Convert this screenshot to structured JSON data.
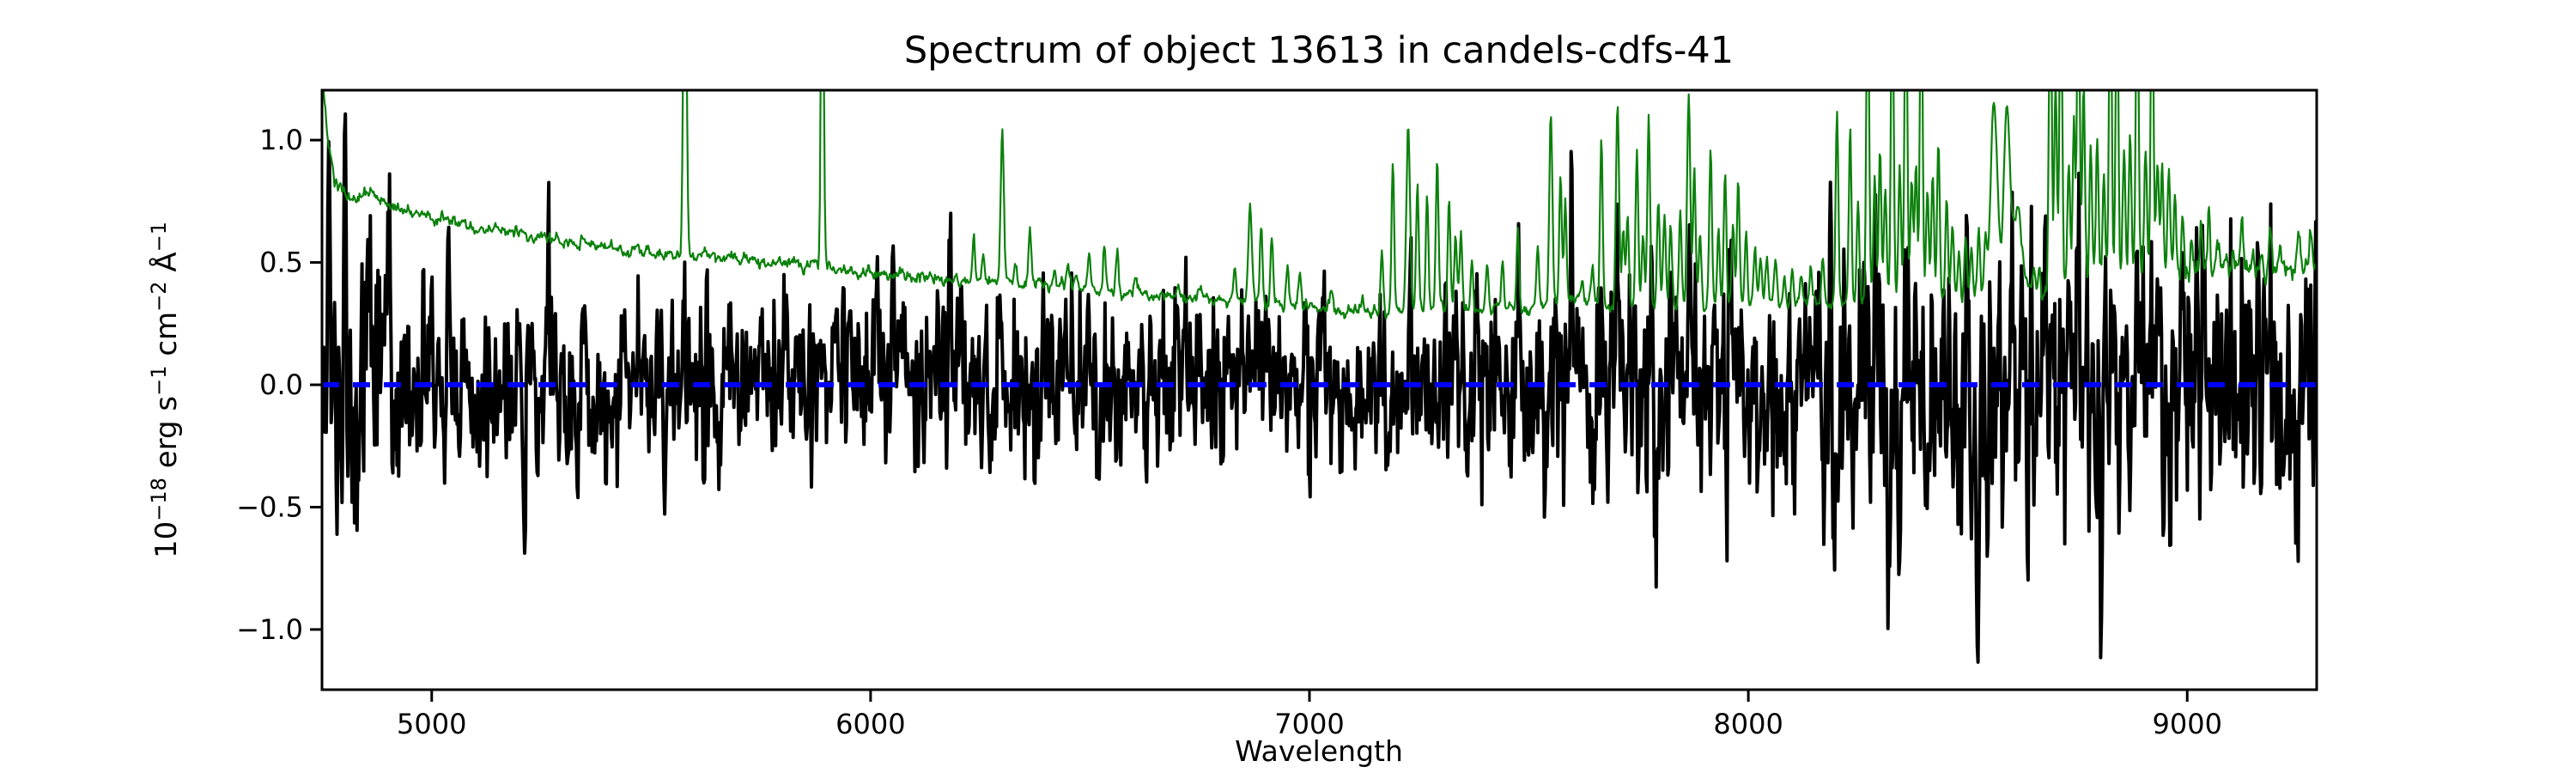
{
  "figure": {
    "title": "Spectrum of object 13613 in candels-cdfs-41",
    "background": "#ffffff"
  },
  "chart_data": {
    "type": "line",
    "title": "Spectrum of object 13613 in candels-cdfs-41",
    "xlabel": "Wavelength",
    "ylabel": "10⁻¹⁸ erg s⁻¹ cm⁻² Å⁻¹",
    "ylabel_segments": [
      {
        "t": "10"
      },
      {
        "t": "−18",
        "sup": true
      },
      {
        "t": " erg s"
      },
      {
        "t": "−1",
        "sup": true
      },
      {
        "t": " cm"
      },
      {
        "t": "−2",
        "sup": true
      },
      {
        "t": " Å"
      },
      {
        "t": "−1",
        "sup": true
      }
    ],
    "xlim": [
      4750,
      9295
    ],
    "ylim": [
      -1.246,
      1.204
    ],
    "x_ticks": [
      5000,
      6000,
      7000,
      8000,
      9000
    ],
    "x_tick_labels": [
      "5000",
      "6000",
      "7000",
      "8000",
      "9000"
    ],
    "y_ticks": [
      1.0,
      0.5,
      0.0,
      -0.5,
      -1.0
    ],
    "y_tick_labels": [
      "1.0",
      "0.5",
      "0.0",
      "−0.5",
      "−1.0"
    ],
    "grid": false,
    "legend": null,
    "colors": {
      "flux": "#000000",
      "noise": "#0c810c",
      "zero_line": "#0000ff",
      "axes": "#000000"
    },
    "series": [
      {
        "name": "flux",
        "description": "Extracted object flux spectrum: correlated noise around zero, noisier at blue and red ends",
        "color": "#000000",
        "style": "solid",
        "width": 4,
        "seed": 1361301,
        "ar": 0.45,
        "step": 1.9,
        "spike_width": 2.6,
        "sigma_control": [
          [
            4750,
            0.3
          ],
          [
            4800,
            0.33
          ],
          [
            4870,
            0.26
          ],
          [
            4950,
            0.22
          ],
          [
            5100,
            0.2
          ],
          [
            5400,
            0.195
          ],
          [
            5700,
            0.185
          ],
          [
            6000,
            0.18
          ],
          [
            6400,
            0.17
          ],
          [
            6800,
            0.175
          ],
          [
            7100,
            0.185
          ],
          [
            7400,
            0.2
          ],
          [
            7700,
            0.21
          ],
          [
            8000,
            0.23
          ],
          [
            8150,
            0.28
          ],
          [
            8400,
            0.31
          ],
          [
            8700,
            0.3
          ],
          [
            9000,
            0.27
          ],
          [
            9295,
            0.3
          ]
        ],
        "spikes": [
          [
            4765,
            0.85
          ],
          [
            4803,
            1.0
          ],
          [
            4821,
            -0.62
          ],
          [
            4853,
            0.55
          ],
          [
            4903,
            0.8
          ],
          [
            4960,
            -0.45
          ],
          [
            5040,
            0.45
          ],
          [
            5211,
            -0.52
          ],
          [
            5265,
            0.52
          ],
          [
            5330,
            -0.4
          ],
          [
            5575,
            0.48
          ],
          [
            5700,
            -0.42
          ],
          [
            5810,
            0.4
          ],
          [
            6050,
            0.42
          ],
          [
            6180,
            0.45
          ],
          [
            6290,
            0.48
          ],
          [
            6444,
            0.42
          ],
          [
            6560,
            -0.4
          ],
          [
            6700,
            0.38
          ],
          [
            6860,
            0.42
          ],
          [
            7000,
            -0.38
          ],
          [
            7229,
            0.45
          ],
          [
            7310,
            0.4
          ],
          [
            7479,
            0.48
          ],
          [
            7597,
            0.62
          ],
          [
            7702,
            0.46
          ],
          [
            7790,
            -0.42
          ],
          [
            7864,
            0.56
          ],
          [
            7950,
            -0.4
          ],
          [
            8080,
            -0.45
          ],
          [
            8196,
            -0.96
          ],
          [
            8289,
            0.56
          ],
          [
            8317,
            -0.97
          ],
          [
            8404,
            -0.68
          ],
          [
            8470,
            0.45
          ],
          [
            8523,
            -0.66
          ],
          [
            8546,
            -0.5
          ],
          [
            8600,
            0.5
          ],
          [
            8638,
            -0.65
          ],
          [
            8690,
            0.45
          ],
          [
            8750,
            0.5
          ],
          [
            8776,
            -0.45
          ],
          [
            8804,
            -0.73
          ],
          [
            8884,
            0.64
          ],
          [
            8960,
            -0.45
          ],
          [
            9040,
            0.42
          ],
          [
            9100,
            0.46
          ],
          [
            9170,
            -0.48
          ],
          [
            9230,
            0.4
          ],
          [
            9275,
            0.45
          ]
        ]
      },
      {
        "name": "noise",
        "description": "Noise / sky spectrum: declining continuum with telluric sky emission line forest, clipped at plot top",
        "color": "#0c810c",
        "style": "solid",
        "width": 2.2,
        "seed": 414141,
        "step": 1.9,
        "wiggle_sigma": 0.011,
        "default_line_width": 3.0,
        "continuum_control": [
          [
            4750,
            1.3
          ],
          [
            4762,
            1.02
          ],
          [
            4778,
            0.84
          ],
          [
            4800,
            0.78
          ],
          [
            4830,
            0.76
          ],
          [
            4860,
            0.79
          ],
          [
            4900,
            0.73
          ],
          [
            5020,
            0.68
          ],
          [
            5150,
            0.63
          ],
          [
            5250,
            0.6
          ],
          [
            5400,
            0.565
          ],
          [
            5550,
            0.535
          ],
          [
            5700,
            0.51
          ],
          [
            5850,
            0.495
          ],
          [
            6000,
            0.455
          ],
          [
            6150,
            0.435
          ],
          [
            6300,
            0.42
          ],
          [
            6450,
            0.405
          ],
          [
            6600,
            0.375
          ],
          [
            6750,
            0.35
          ],
          [
            6900,
            0.325
          ],
          [
            7050,
            0.31
          ],
          [
            7200,
            0.3
          ],
          [
            7350,
            0.305
          ],
          [
            7500,
            0.31
          ],
          [
            7594,
            0.345
          ],
          [
            7621,
            0.34
          ],
          [
            7700,
            0.32
          ],
          [
            7850,
            0.325
          ],
          [
            8000,
            0.33
          ],
          [
            8150,
            0.33
          ],
          [
            8300,
            0.34
          ],
          [
            8450,
            0.35
          ],
          [
            8600,
            0.36
          ],
          [
            8700,
            0.4
          ],
          [
            8800,
            0.42
          ],
          [
            8900,
            0.44
          ],
          [
            9000,
            0.45
          ],
          [
            9100,
            0.46
          ],
          [
            9200,
            0.47
          ],
          [
            9295,
            0.5
          ]
        ],
        "sky_lines": [
          [
            5577,
            2.2,
            3.5
          ],
          [
            5890,
            2.2,
            3.0
          ],
          [
            6235,
            0.6
          ],
          [
            6257,
            0.55
          ],
          [
            6300,
            1.06,
            3.5
          ],
          [
            6330,
            0.5
          ],
          [
            6363,
            0.64
          ],
          [
            6420,
            0.46
          ],
          [
            6450,
            0.5
          ],
          [
            6498,
            0.52
          ],
          [
            6533,
            0.57
          ],
          [
            6562,
            0.55
          ],
          [
            6604,
            0.44
          ],
          [
            6700,
            0.4
          ],
          [
            6750,
            0.39
          ],
          [
            6830,
            0.46
          ],
          [
            6865,
            0.73,
            4.0
          ],
          [
            6890,
            0.66
          ],
          [
            6914,
            0.61
          ],
          [
            6950,
            0.49
          ],
          [
            6978,
            0.47
          ],
          [
            7050,
            0.38
          ],
          [
            7120,
            0.36
          ],
          [
            7165,
            0.55
          ],
          [
            7190,
            0.93
          ],
          [
            7225,
            1.06,
            4.0
          ],
          [
            7246,
            0.81
          ],
          [
            7268,
            0.79
          ],
          [
            7291,
            0.93
          ],
          [
            7318,
            0.77
          ],
          [
            7333,
            0.62
          ],
          [
            7345,
            0.61
          ],
          [
            7370,
            0.52
          ],
          [
            7405,
            0.51
          ],
          [
            7440,
            0.49
          ],
          [
            7475,
            0.63
          ],
          [
            7520,
            0.56
          ],
          [
            7550,
            1.12,
            3.5
          ],
          [
            7572,
            0.86
          ],
          [
            7583,
            0.73
          ],
          [
            7622,
            0.44
          ],
          [
            7645,
            0.48
          ],
          [
            7665,
            1.01
          ],
          [
            7702,
            1.14,
            3.5
          ],
          [
            7715,
            0.65
          ],
          [
            7725,
            0.69
          ],
          [
            7746,
            0.98
          ],
          [
            7760,
            0.62
          ],
          [
            7773,
            1.09
          ],
          [
            7795,
            0.73
          ],
          [
            7809,
            0.69
          ],
          [
            7823,
            0.65
          ],
          [
            7845,
            0.71
          ],
          [
            7864,
            1.19,
            3.5
          ],
          [
            7877,
            0.86
          ],
          [
            7890,
            0.62
          ],
          [
            7914,
            0.96
          ],
          [
            7932,
            0.62
          ],
          [
            7947,
            0.86
          ],
          [
            7965,
            0.65
          ],
          [
            7977,
            0.84
          ],
          [
            7995,
            0.62
          ],
          [
            8015,
            0.56
          ],
          [
            8028,
            0.52
          ],
          [
            8042,
            0.53
          ],
          [
            8062,
            0.51
          ],
          [
            8082,
            0.46
          ],
          [
            8100,
            0.46
          ],
          [
            8120,
            0.44
          ],
          [
            8142,
            0.49
          ],
          [
            8170,
            0.51
          ],
          [
            8202,
            1.11
          ],
          [
            8232,
            1.06
          ],
          [
            8250,
            0.75
          ],
          [
            8272,
            1.8
          ],
          [
            8288,
            0.85
          ],
          [
            8300,
            0.96
          ],
          [
            8312,
            0.8
          ],
          [
            8328,
            1.8
          ],
          [
            8345,
            0.91
          ],
          [
            8359,
            1.8
          ],
          [
            8372,
            0.85
          ],
          [
            8382,
            0.91
          ],
          [
            8394,
            1.8
          ],
          [
            8408,
            0.8
          ],
          [
            8420,
            0.86
          ],
          [
            8433,
            1.01
          ],
          [
            8452,
            0.76
          ],
          [
            8465,
            0.66
          ],
          [
            8480,
            0.55
          ],
          [
            8495,
            0.61
          ],
          [
            8508,
            0.56
          ],
          [
            8525,
            0.63
          ],
          [
            8540,
            0.59
          ],
          [
            8560,
            1.13,
            8.0
          ],
          [
            8589,
            1.11,
            7.0
          ],
          [
            8613,
            0.72,
            10.0
          ],
          [
            8650,
            0.46
          ],
          [
            8662,
            0.5
          ],
          [
            8688,
            1.8
          ],
          [
            8700,
            1.25
          ],
          [
            8712,
            1.8
          ],
          [
            8730,
            0.92
          ],
          [
            8742,
            1.1
          ],
          [
            8752,
            1.8
          ],
          [
            8764,
            1.22
          ],
          [
            8780,
            0.96
          ],
          [
            8795,
            1.02
          ],
          [
            8810,
            0.85
          ],
          [
            8825,
            1.8
          ],
          [
            8840,
            1.75
          ],
          [
            8856,
            0.95
          ],
          [
            8870,
            1.02
          ],
          [
            8886,
            1.8
          ],
          [
            8905,
            0.96
          ],
          [
            8920,
            1.8
          ],
          [
            8932,
            0.9
          ],
          [
            8943,
            0.96
          ],
          [
            8958,
            0.86
          ],
          [
            8972,
            0.76
          ],
          [
            8990,
            0.71
          ],
          [
            9010,
            0.62
          ],
          [
            9032,
            0.66
          ],
          [
            9049,
            0.73
          ],
          [
            9070,
            0.61
          ],
          [
            9088,
            0.55
          ],
          [
            9105,
            0.56
          ],
          [
            9125,
            0.69
          ],
          [
            9150,
            0.56
          ],
          [
            9170,
            0.53
          ],
          [
            9190,
            0.61
          ],
          [
            9212,
            0.56
          ],
          [
            9232,
            0.51
          ],
          [
            9255,
            0.56
          ],
          [
            9280,
            0.61
          ]
        ]
      },
      {
        "name": "zero",
        "description": "Dashed blue reference line at flux = 0",
        "color": "#0000ff",
        "style": "dashed",
        "width": 6,
        "dash": [
          20,
          16
        ],
        "y": 0.0
      }
    ]
  }
}
